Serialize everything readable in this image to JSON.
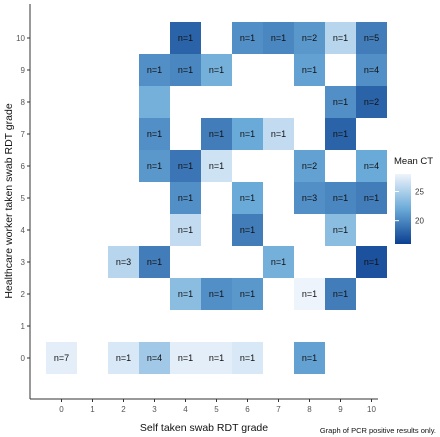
{
  "chart_data": {
    "type": "heatmap",
    "xlabel": "Self taken swab RDT grade",
    "ylabel": "Healthcare worker taken swab RDT grade",
    "x_categories": [
      "0",
      "1",
      "2",
      "3",
      "4",
      "5",
      "6",
      "7",
      "8",
      "9",
      "10"
    ],
    "y_categories": [
      "0",
      "1",
      "2",
      "3",
      "4",
      "5",
      "6",
      "7",
      "8",
      "9",
      "10"
    ],
    "legend": {
      "title": "Mean CT",
      "ticks": [
        20,
        25
      ],
      "range": [
        16,
        28
      ],
      "low_color": "#0b3f91",
      "mid_color": "#6aaad8",
      "high_color": "#eef4fc",
      "placement": "right"
    },
    "caption": "Graph of PCR positive results only.",
    "cells": [
      {
        "x": "0",
        "y": "0",
        "label": "n=7",
        "mean_ct": 27.5
      },
      {
        "x": "2",
        "y": "0",
        "label": "n=1",
        "mean_ct": 27
      },
      {
        "x": "3",
        "y": "0",
        "label": "n=4",
        "mean_ct": 24.5
      },
      {
        "x": "4",
        "y": "0",
        "label": "n=1",
        "mean_ct": 27.5
      },
      {
        "x": "5",
        "y": "0",
        "label": "n=1",
        "mean_ct": 27.5
      },
      {
        "x": "6",
        "y": "0",
        "label": "n=1",
        "mean_ct": 27
      },
      {
        "x": "8",
        "y": "0",
        "label": "n=1",
        "mean_ct": 21.5
      },
      {
        "x": "4",
        "y": "2",
        "label": "n=1",
        "mean_ct": 23.5
      },
      {
        "x": "5",
        "y": "2",
        "label": "n=1",
        "mean_ct": 20.5
      },
      {
        "x": "6",
        "y": "2",
        "label": "n=1",
        "mean_ct": 21
      },
      {
        "x": "8",
        "y": "2",
        "label": "n=1",
        "mean_ct": 28
      },
      {
        "x": "9",
        "y": "2",
        "label": "n=1",
        "mean_ct": 19.5
      },
      {
        "x": "2",
        "y": "3",
        "label": "n=3",
        "mean_ct": 25.5
      },
      {
        "x": "3",
        "y": "3",
        "label": "n=1",
        "mean_ct": 19.5
      },
      {
        "x": "7",
        "y": "3",
        "label": "n=1",
        "mean_ct": 22.5
      },
      {
        "x": "10",
        "y": "3",
        "label": "n=1",
        "mean_ct": 17
      },
      {
        "x": "4",
        "y": "4",
        "label": "n=1",
        "mean_ct": 26
      },
      {
        "x": "6",
        "y": "4",
        "label": "n=1",
        "mean_ct": 19.5
      },
      {
        "x": "9",
        "y": "4",
        "label": "n=1",
        "mean_ct": 23.5
      },
      {
        "x": "4",
        "y": "5",
        "label": "n=1",
        "mean_ct": 20.5
      },
      {
        "x": "6",
        "y": "5",
        "label": "n=1",
        "mean_ct": 22
      },
      {
        "x": "8",
        "y": "5",
        "label": "n=3",
        "mean_ct": 20.5
      },
      {
        "x": "9",
        "y": "5",
        "label": "n=1",
        "mean_ct": 20
      },
      {
        "x": "10",
        "y": "5",
        "label": "n=1",
        "mean_ct": 19.5
      },
      {
        "x": "3",
        "y": "6",
        "label": "n=1",
        "mean_ct": 21
      },
      {
        "x": "4",
        "y": "6",
        "label": "n=1",
        "mean_ct": 19
      },
      {
        "x": "5",
        "y": "6",
        "label": "n=1",
        "mean_ct": 26.5
      },
      {
        "x": "8",
        "y": "6",
        "label": "n=2",
        "mean_ct": 21.5
      },
      {
        "x": "10",
        "y": "6",
        "label": "n=4",
        "mean_ct": 22
      },
      {
        "x": "3",
        "y": "7",
        "label": "n=1",
        "mean_ct": 20.5
      },
      {
        "x": "5",
        "y": "7",
        "label": "n=1",
        "mean_ct": 19.5
      },
      {
        "x": "6",
        "y": "7",
        "label": "n=1",
        "mean_ct": 22
      },
      {
        "x": "7",
        "y": "7",
        "label": "n=1",
        "mean_ct": 26
      },
      {
        "x": "9",
        "y": "7",
        "label": "n=1",
        "mean_ct": 18
      },
      {
        "x": "3",
        "y": "8",
        "label": "",
        "mean_ct": 22.5
      },
      {
        "x": "9",
        "y": "8",
        "label": "n=1",
        "mean_ct": 20.5
      },
      {
        "x": "10",
        "y": "8",
        "label": "n=2",
        "mean_ct": 18
      },
      {
        "x": "3",
        "y": "9",
        "label": "n=1",
        "mean_ct": 20.5
      },
      {
        "x": "4",
        "y": "9",
        "label": "n=1",
        "mean_ct": 20
      },
      {
        "x": "5",
        "y": "9",
        "label": "n=1",
        "mean_ct": 22.5
      },
      {
        "x": "8",
        "y": "9",
        "label": "n=1",
        "mean_ct": 21.5
      },
      {
        "x": "10",
        "y": "9",
        "label": "n=4",
        "mean_ct": 20.5
      },
      {
        "x": "4",
        "y": "10",
        "label": "n=1",
        "mean_ct": 18
      },
      {
        "x": "6",
        "y": "10",
        "label": "n=1",
        "mean_ct": 20.5
      },
      {
        "x": "7",
        "y": "10",
        "label": "n=1",
        "mean_ct": 20
      },
      {
        "x": "8",
        "y": "10",
        "label": "n=2",
        "mean_ct": 21
      },
      {
        "x": "9",
        "y": "10",
        "label": "n=1",
        "mean_ct": 25.5
      },
      {
        "x": "10",
        "y": "10",
        "label": "n=5",
        "mean_ct": 19.5
      }
    ]
  }
}
